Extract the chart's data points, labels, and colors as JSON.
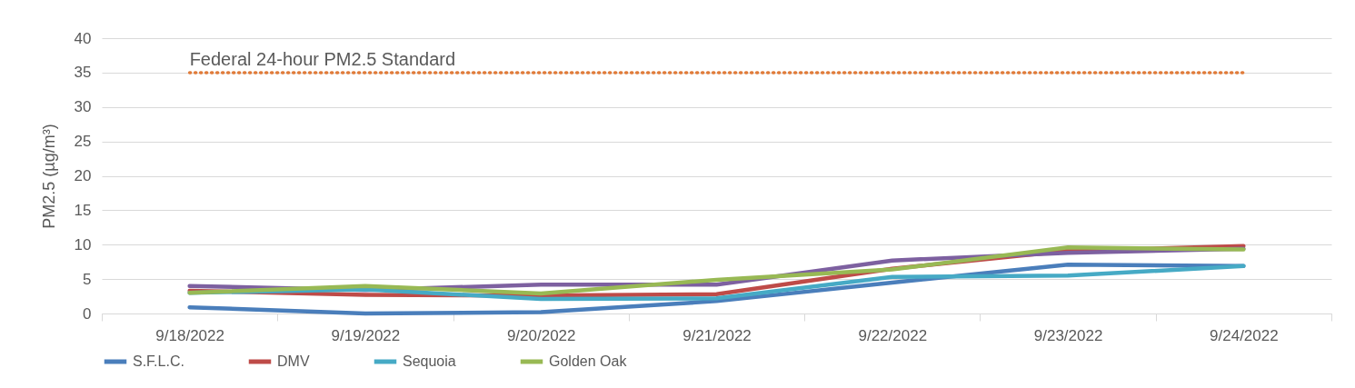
{
  "chart_data": {
    "type": "line",
    "categories": [
      "9/18/2022",
      "9/19/2022",
      "9/20/2022",
      "9/21/2022",
      "9/22/2022",
      "9/23/2022",
      "9/24/2022"
    ],
    "ylabel": "PM2.5 (µg/m³)",
    "ylim": [
      0,
      40
    ],
    "yticks": [
      0,
      5,
      10,
      15,
      20,
      25,
      30,
      35,
      40
    ],
    "grid": "y",
    "legend": "bottom",
    "line_style": "solid",
    "marker": "none",
    "series": [
      {
        "name": "S.F.L.C.",
        "color": "#4a7ebb",
        "values": [
          0.9,
          0,
          0.2,
          1.8,
          4.5,
          7.1,
          6.9
        ]
      },
      {
        "name": "DMV",
        "color": "#be4b48",
        "values": [
          3.3,
          2.7,
          2.6,
          2.8,
          6.5,
          9.1,
          9.8
        ]
      },
      {
        "color": "#7d60a0",
        "values": [
          4.0,
          3.4,
          4.2,
          4.2,
          7.7,
          8.8,
          9.4
        ]
      },
      {
        "name": "Sequoia",
        "color": "#46aac5",
        "values": [
          3.0,
          3.5,
          2.1,
          2.2,
          5.3,
          5.5,
          6.9
        ]
      },
      {
        "name": "Golden Oak",
        "color": "#98b954",
        "values": [
          3.0,
          4.0,
          2.9,
          4.9,
          6.4,
          9.6,
          9.3
        ]
      }
    ],
    "ref_lines": [
      {
        "axis": "y",
        "value": 35,
        "label": "Federal 24-hour PM2.5 Standard",
        "color": "#e07b39",
        "line_style": "dotted"
      }
    ]
  }
}
